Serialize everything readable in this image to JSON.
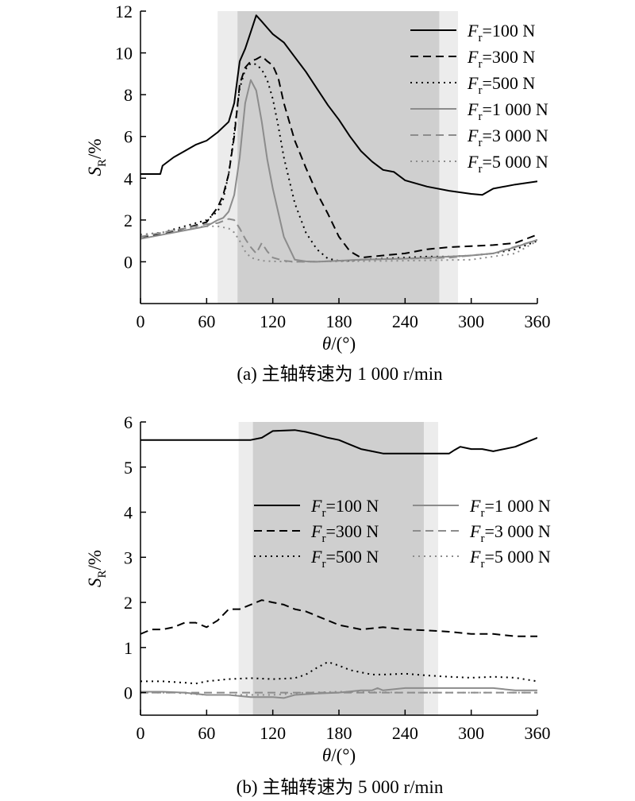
{
  "chart_data": [
    {
      "type": "line",
      "caption": "(a) 主轴转速为 1 000 r/min",
      "xlabel": "θ/(°)",
      "ylabel": "S_R/%",
      "xlim": [
        0,
        360
      ],
      "ylim": [
        -2,
        12
      ],
      "xticks": [
        0,
        60,
        120,
        180,
        240,
        300,
        360
      ],
      "yticks": [
        0,
        2,
        4,
        6,
        8,
        10,
        12
      ],
      "grid": false,
      "legend": "top-right, single column",
      "shaded_regions": [
        {
          "from": 70,
          "to": 288,
          "shade": "light"
        },
        {
          "from": 88,
          "to": 271,
          "shade": "dark"
        }
      ],
      "series": [
        {
          "name": "F_r=100 N",
          "color": "#000000",
          "dash": "solid",
          "x": [
            0,
            18,
            20,
            30,
            40,
            50,
            60,
            70,
            80,
            85,
            90,
            95,
            100,
            105,
            110,
            115,
            120,
            130,
            140,
            150,
            160,
            170,
            180,
            190,
            200,
            210,
            220,
            230,
            240,
            260,
            280,
            300,
            310,
            320,
            340,
            360
          ],
          "y": [
            4.2,
            4.2,
            4.6,
            5.0,
            5.3,
            5.6,
            5.8,
            6.2,
            6.7,
            7.6,
            9.6,
            10.2,
            11.0,
            11.8,
            11.5,
            11.2,
            10.9,
            10.5,
            9.8,
            9.1,
            8.3,
            7.5,
            6.8,
            6.0,
            5.3,
            4.8,
            4.4,
            4.3,
            3.9,
            3.6,
            3.4,
            3.25,
            3.2,
            3.5,
            3.7,
            3.85
          ]
        },
        {
          "name": "F_r=300 N",
          "color": "#000000",
          "dash": "dashed",
          "x": [
            0,
            20,
            40,
            60,
            70,
            75,
            80,
            85,
            90,
            95,
            100,
            105,
            110,
            115,
            120,
            125,
            130,
            140,
            150,
            160,
            170,
            180,
            190,
            200,
            220,
            240,
            260,
            280,
            300,
            320,
            340,
            360
          ],
          "y": [
            1.2,
            1.3,
            1.6,
            1.9,
            2.6,
            3.2,
            4.2,
            6.0,
            8.5,
            9.3,
            9.6,
            9.7,
            9.85,
            9.6,
            9.4,
            8.8,
            7.6,
            5.8,
            4.5,
            3.3,
            2.3,
            1.2,
            0.5,
            0.2,
            0.3,
            0.4,
            0.6,
            0.7,
            0.75,
            0.8,
            0.9,
            1.3
          ]
        },
        {
          "name": "F_r=500 N",
          "color": "#000000",
          "dash": "dotted",
          "x": [
            0,
            20,
            40,
            60,
            70,
            75,
            80,
            85,
            90,
            95,
            100,
            105,
            110,
            115,
            120,
            125,
            130,
            140,
            150,
            160,
            170,
            180,
            190,
            200,
            220,
            240,
            260,
            280,
            300,
            320,
            340,
            360
          ],
          "y": [
            1.3,
            1.4,
            1.7,
            2.0,
            2.4,
            3.0,
            4.2,
            6.2,
            8.3,
            9.2,
            9.5,
            9.45,
            9.2,
            8.7,
            7.8,
            6.5,
            5.0,
            2.8,
            1.4,
            0.6,
            0.15,
            0.05,
            0.05,
            0.1,
            0.15,
            0.2,
            0.25,
            0.25,
            0.3,
            0.4,
            0.6,
            1.0
          ]
        },
        {
          "name": "F_r=1 000 N",
          "color": "#8c8c8c",
          "dash": "solid",
          "x": [
            0,
            20,
            40,
            60,
            70,
            75,
            80,
            85,
            90,
            95,
            100,
            105,
            110,
            115,
            120,
            130,
            140,
            150,
            160,
            180,
            200,
            240,
            280,
            300,
            320,
            340,
            360
          ],
          "y": [
            1.1,
            1.3,
            1.5,
            1.7,
            2.0,
            2.1,
            2.4,
            3.2,
            5.0,
            7.6,
            8.7,
            8.2,
            6.7,
            4.9,
            3.5,
            1.2,
            0.1,
            0.02,
            0.0,
            0.05,
            0.1,
            0.15,
            0.25,
            0.3,
            0.4,
            0.7,
            1.05
          ]
        },
        {
          "name": "F_r=3 000 N",
          "color": "#8c8c8c",
          "dash": "dashed",
          "x": [
            0,
            20,
            40,
            60,
            70,
            80,
            85,
            90,
            95,
            100,
            105,
            110,
            115,
            120,
            130,
            140,
            160,
            200,
            240,
            280,
            320,
            360
          ],
          "y": [
            1.2,
            1.4,
            1.6,
            1.8,
            1.85,
            2.05,
            2.0,
            1.6,
            1.1,
            0.7,
            0.4,
            0.9,
            0.5,
            0.2,
            0.05,
            0.0,
            0.0,
            0.1,
            0.15,
            0.2,
            0.4,
            1.05
          ]
        },
        {
          "name": "F_r=5 000 N",
          "color": "#8c8c8c",
          "dash": "dotted",
          "x": [
            0,
            20,
            40,
            60,
            70,
            80,
            85,
            90,
            95,
            100,
            110,
            120,
            140,
            180,
            240,
            300,
            340,
            360
          ],
          "y": [
            1.3,
            1.4,
            1.6,
            1.7,
            1.7,
            1.6,
            1.4,
            1.0,
            0.5,
            0.2,
            0.05,
            0.02,
            0.0,
            0.02,
            0.05,
            0.1,
            0.4,
            1.0
          ]
        }
      ]
    },
    {
      "type": "line",
      "caption": "(b) 主轴转速为 5 000 r/min",
      "xlabel": "θ/(°)",
      "ylabel": "S_R/%",
      "xlim": [
        0,
        360
      ],
      "ylim": [
        -0.5,
        6
      ],
      "xticks": [
        0,
        60,
        120,
        180,
        240,
        300,
        360
      ],
      "yticks": [
        0,
        1,
        2,
        3,
        4,
        5,
        6
      ],
      "grid": false,
      "legend": "center, two columns",
      "shaded_regions": [
        {
          "from": 89,
          "to": 270,
          "shade": "light"
        },
        {
          "from": 102,
          "to": 257,
          "shade": "dark"
        }
      ],
      "series": [
        {
          "name": "F_r=100 N",
          "color": "#000000",
          "dash": "solid",
          "x": [
            0,
            50,
            100,
            110,
            120,
            140,
            150,
            160,
            170,
            180,
            190,
            200,
            210,
            220,
            240,
            260,
            280,
            285,
            290,
            300,
            310,
            320,
            340,
            355,
            360
          ],
          "y": [
            5.6,
            5.6,
            5.6,
            5.65,
            5.8,
            5.82,
            5.78,
            5.72,
            5.65,
            5.6,
            5.5,
            5.4,
            5.35,
            5.3,
            5.3,
            5.3,
            5.3,
            5.38,
            5.45,
            5.4,
            5.4,
            5.35,
            5.45,
            5.6,
            5.65
          ]
        },
        {
          "name": "F_r=300 N",
          "color": "#000000",
          "dash": "dashed",
          "x": [
            0,
            10,
            20,
            30,
            40,
            50,
            60,
            70,
            80,
            90,
            100,
            110,
            120,
            130,
            140,
            150,
            160,
            170,
            180,
            190,
            200,
            220,
            240,
            260,
            280,
            300,
            320,
            340,
            360
          ],
          "y": [
            1.3,
            1.4,
            1.4,
            1.45,
            1.55,
            1.55,
            1.45,
            1.6,
            1.85,
            1.85,
            1.95,
            2.05,
            2.0,
            1.95,
            1.85,
            1.8,
            1.7,
            1.6,
            1.5,
            1.45,
            1.4,
            1.45,
            1.4,
            1.38,
            1.35,
            1.3,
            1.3,
            1.25,
            1.25
          ]
        },
        {
          "name": "F_r=500 N",
          "color": "#000000",
          "dash": "dotted",
          "x": [
            0,
            20,
            40,
            50,
            60,
            80,
            100,
            120,
            140,
            150,
            160,
            170,
            180,
            190,
            200,
            210,
            220,
            240,
            260,
            280,
            300,
            320,
            340,
            360
          ],
          "y": [
            0.25,
            0.25,
            0.22,
            0.2,
            0.25,
            0.3,
            0.32,
            0.3,
            0.32,
            0.4,
            0.55,
            0.68,
            0.6,
            0.5,
            0.45,
            0.4,
            0.4,
            0.42,
            0.38,
            0.35,
            0.33,
            0.35,
            0.33,
            0.25
          ]
        },
        {
          "name": "F_r=1 000 N",
          "color": "#8c8c8c",
          "dash": "solid",
          "x": [
            0,
            20,
            40,
            60,
            80,
            100,
            120,
            130,
            140,
            160,
            180,
            200,
            210,
            215,
            220,
            240,
            260,
            280,
            300,
            320,
            340,
            360
          ],
          "y": [
            0.02,
            0.02,
            0.0,
            -0.05,
            -0.05,
            -0.1,
            -0.1,
            -0.12,
            -0.05,
            -0.02,
            0.0,
            0.05,
            0.05,
            0.1,
            0.05,
            0.1,
            0.1,
            0.1,
            0.1,
            0.1,
            0.05,
            0.05
          ]
        },
        {
          "name": "F_r=3 000 N",
          "color": "#8c8c8c",
          "dash": "dashed",
          "x": [
            0,
            60,
            120,
            180,
            240,
            300,
            360
          ],
          "y": [
            0.0,
            0.0,
            0.0,
            0.0,
            0.0,
            0.0,
            0.0
          ]
        },
        {
          "name": "F_r=5 000 N",
          "color": "#8c8c8c",
          "dash": "dotted",
          "x": [
            0,
            30,
            60,
            90,
            120,
            150,
            180,
            240,
            300,
            360
          ],
          "y": [
            0.0,
            0.0,
            -0.05,
            -0.05,
            -0.05,
            0.0,
            0.02,
            0.0,
            0.0,
            0.0
          ]
        }
      ]
    }
  ]
}
